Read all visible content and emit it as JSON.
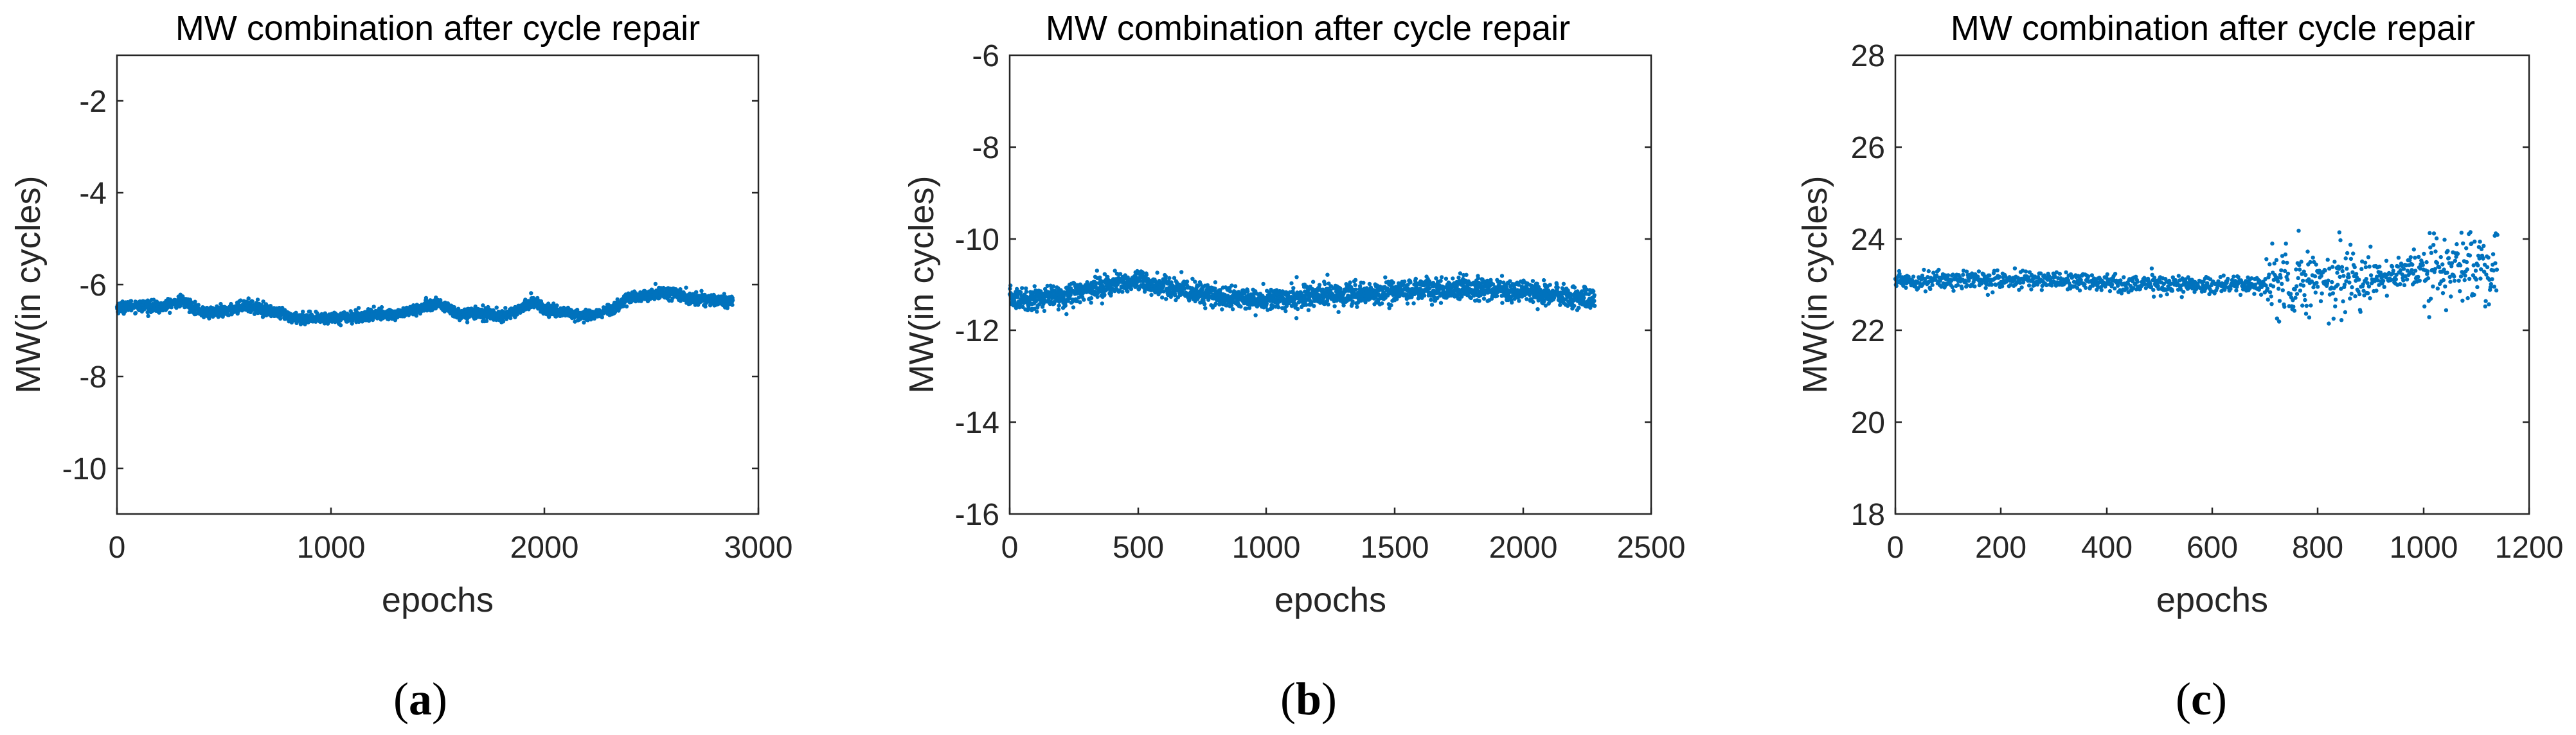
{
  "chart_data": [
    {
      "type": "scatter",
      "title": "MW combination after cycle repair",
      "xlabel": "epochs",
      "ylabel": "MW(in cycles)",
      "xlim": [
        0,
        3000
      ],
      "ylim": [
        -11,
        -1
      ],
      "xticks": [
        0,
        1000,
        2000,
        3000
      ],
      "xtick_labels": [
        "0",
        "1000",
        "2000",
        "3000"
      ],
      "yticks": [
        -2,
        -4,
        -6,
        -8,
        -10
      ],
      "ytick_labels": [
        "-2",
        "-4",
        "-6",
        "-8",
        "-10"
      ],
      "marker_color": "#0072BD",
      "num_points": 2880,
      "series_trend": {
        "x": [
          0,
          100,
          200,
          300,
          400,
          500,
          600,
          700,
          800,
          900,
          1000,
          1100,
          1200,
          1300,
          1400,
          1500,
          1600,
          1700,
          1800,
          1900,
          1950,
          2000,
          2100,
          2200,
          2300,
          2400,
          2500,
          2600,
          2700,
          2800,
          2880
        ],
        "y": [
          -6.5,
          -6.45,
          -6.5,
          -6.35,
          -6.6,
          -6.6,
          -6.45,
          -6.55,
          -6.7,
          -6.75,
          -6.72,
          -6.7,
          -6.65,
          -6.65,
          -6.55,
          -6.4,
          -6.65,
          -6.6,
          -6.7,
          -6.5,
          -6.35,
          -6.55,
          -6.6,
          -6.7,
          -6.55,
          -6.3,
          -6.2,
          -6.2,
          -6.3,
          -6.35,
          -6.35
        ]
      },
      "noise": 0.06,
      "caption": "(a)",
      "caption_letter": "a"
    },
    {
      "type": "scatter",
      "title": "MW combination after cycle repair",
      "xlabel": "epochs",
      "ylabel": "MW(in cycles)",
      "xlim": [
        0,
        2500
      ],
      "ylim": [
        -16,
        -6
      ],
      "xticks": [
        0,
        500,
        1000,
        1500,
        2000,
        2500
      ],
      "xtick_labels": [
        "0",
        "500",
        "1000",
        "1500",
        "2000",
        "2500"
      ],
      "yticks": [
        -6,
        -8,
        -10,
        -12,
        -14,
        -16
      ],
      "ytick_labels": [
        "-6",
        "-8",
        "-10",
        "-12",
        "-14",
        "-16"
      ],
      "marker_color": "#0072BD",
      "num_points": 2280,
      "series_trend": {
        "x": [
          0,
          100,
          200,
          300,
          400,
          500,
          600,
          700,
          800,
          900,
          1000,
          1100,
          1200,
          1300,
          1400,
          1500,
          1600,
          1700,
          1800,
          1900,
          2000,
          2100,
          2200,
          2280
        ],
        "y": [
          -11.3,
          -11.3,
          -11.25,
          -11.1,
          -11.0,
          -10.95,
          -11.05,
          -11.15,
          -11.25,
          -11.3,
          -11.35,
          -11.3,
          -11.25,
          -11.2,
          -11.2,
          -11.15,
          -11.1,
          -11.1,
          -11.05,
          -11.1,
          -11.15,
          -11.2,
          -11.3,
          -11.35
        ]
      },
      "noise": 0.12,
      "caption": "(b)",
      "caption_letter": "b"
    },
    {
      "type": "scatter",
      "title": "MW combination after cycle repair",
      "xlabel": "epochs",
      "ylabel": "MW(in cycles)",
      "xlim": [
        0,
        1200
      ],
      "ylim": [
        18,
        28
      ],
      "xticks": [
        0,
        200,
        400,
        600,
        800,
        1000,
        1200
      ],
      "xtick_labels": [
        "0",
        "200",
        "400",
        "600",
        "800",
        "1000",
        "1200"
      ],
      "yticks": [
        28,
        26,
        24,
        22,
        20,
        18
      ],
      "ytick_labels": [
        "28",
        "26",
        "24",
        "22",
        "20",
        "18"
      ],
      "marker_color": "#0072BD",
      "num_points": 1140,
      "series_trend": {
        "x": [
          0,
          100,
          200,
          300,
          400,
          500,
          600,
          700,
          800,
          900,
          1000,
          1100,
          1140
        ],
        "y": [
          23.1,
          23.1,
          23.1,
          23.1,
          23.05,
          23.0,
          23.0,
          23.0,
          23.1,
          23.15,
          23.3,
          23.4,
          23.4
        ]
      },
      "noise_segments": [
        {
          "x_from": 0,
          "x_to": 700,
          "noise": 0.1
        },
        {
          "x_from": 700,
          "x_to": 900,
          "noise": 0.35
        },
        {
          "x_from": 900,
          "x_to": 1000,
          "noise": 0.15
        },
        {
          "x_from": 1000,
          "x_to": 1140,
          "noise": 0.4
        }
      ],
      "caption": "(c)",
      "caption_letter": "c"
    }
  ]
}
